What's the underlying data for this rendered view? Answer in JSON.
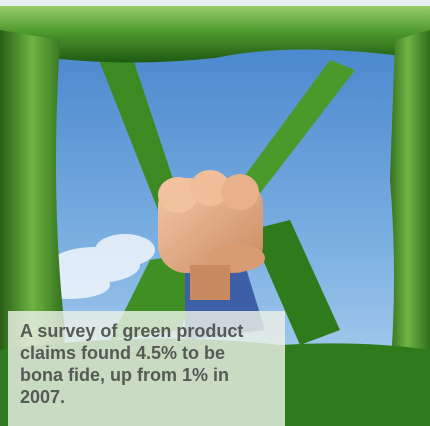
{
  "caption": "A survey of green product claims found 4.5% to be bona fide, up from 1% in 2007."
}
